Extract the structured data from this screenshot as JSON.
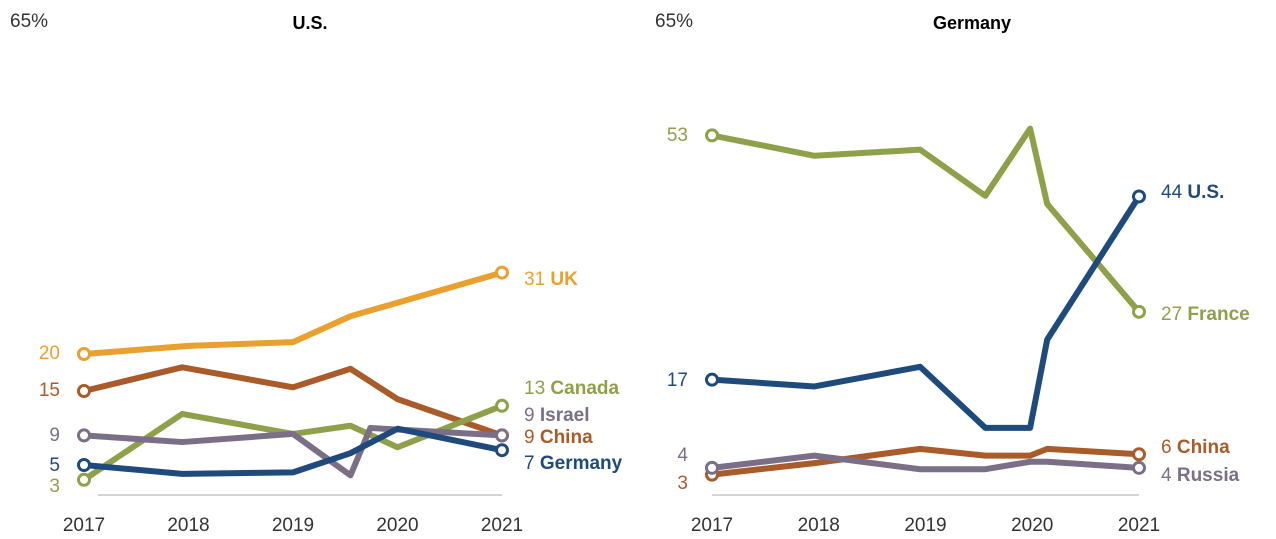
{
  "chart_data": [
    {
      "type": "line",
      "title": "U.S.",
      "xlim": [
        2017,
        2021
      ],
      "xticks": [
        2017,
        2018,
        2019,
        2020,
        2021
      ],
      "ylim": [
        0,
        65
      ],
      "yticks": [
        {
          "value": 65,
          "label": "65%"
        }
      ],
      "series": [
        {
          "name": "UK",
          "color": "#e9a02f",
          "x": [
            2017,
            2018,
            2019,
            2019.55,
            2021
          ],
          "values": [
            20,
            21.1,
            21.6,
            25.1,
            31
          ]
        },
        {
          "name": "China",
          "color": "#a95b29",
          "x": [
            2017,
            2017.94,
            2019,
            2019.55,
            2020,
            2021
          ],
          "values": [
            15,
            18.2,
            15.5,
            18,
            13.9,
            9
          ]
        },
        {
          "name": "Canada",
          "color": "#8ea04a",
          "x": [
            2017,
            2017.94,
            2019,
            2019.55,
            2020,
            2021
          ],
          "values": [
            3,
            11.9,
            9.2,
            10.3,
            7.4,
            13
          ]
        },
        {
          "name": "Israel",
          "color": "#7b6f87",
          "x": [
            2017,
            2017.94,
            2019,
            2019.55,
            2019.74,
            2021
          ],
          "values": [
            9,
            8.1,
            9.2,
            3.6,
            10,
            9
          ]
        },
        {
          "name": "Germany",
          "color": "#1f4a7c",
          "x": [
            2017,
            2017.94,
            2019,
            2019.55,
            2020,
            2021
          ],
          "values": [
            5,
            3.8,
            4,
            6.6,
            9.9,
            7
          ]
        }
      ]
    },
    {
      "type": "line",
      "title": "Germany",
      "xlim": [
        2017,
        2021
      ],
      "xticks": [
        2017,
        2018,
        2019,
        2020,
        2021
      ],
      "ylim": [
        0,
        65
      ],
      "yticks": [
        {
          "value": 65,
          "label": "65%"
        }
      ],
      "series": [
        {
          "name": "France",
          "color": "#8ea04a",
          "x": [
            2017,
            2017.96,
            2018.95,
            2019.56,
            2019.98,
            2020.14,
            2021
          ],
          "values": [
            53,
            50,
            50.9,
            44.1,
            54,
            42.9,
            27
          ]
        },
        {
          "name": "U.S.",
          "color": "#1f4a7c",
          "x": [
            2017,
            2017.96,
            2018.95,
            2019.56,
            2019.98,
            2020.14,
            2021
          ],
          "values": [
            17,
            16,
            18.9,
            9.9,
            9.9,
            22.9,
            44
          ]
        },
        {
          "name": "China",
          "color": "#a95b29",
          "x": [
            2017,
            2017.96,
            2018.95,
            2019.56,
            2019.98,
            2020.14,
            2021
          ],
          "values": [
            3,
            4.7,
            6.8,
            5.8,
            5.8,
            6.8,
            6
          ]
        },
        {
          "name": "Russia",
          "color": "#7b6f87",
          "x": [
            2017,
            2017.96,
            2018.95,
            2019.56,
            2019.98,
            2020.14,
            2021
          ],
          "values": [
            4,
            5.8,
            3.8,
            3.8,
            4.9,
            4.9,
            4
          ]
        }
      ]
    }
  ]
}
